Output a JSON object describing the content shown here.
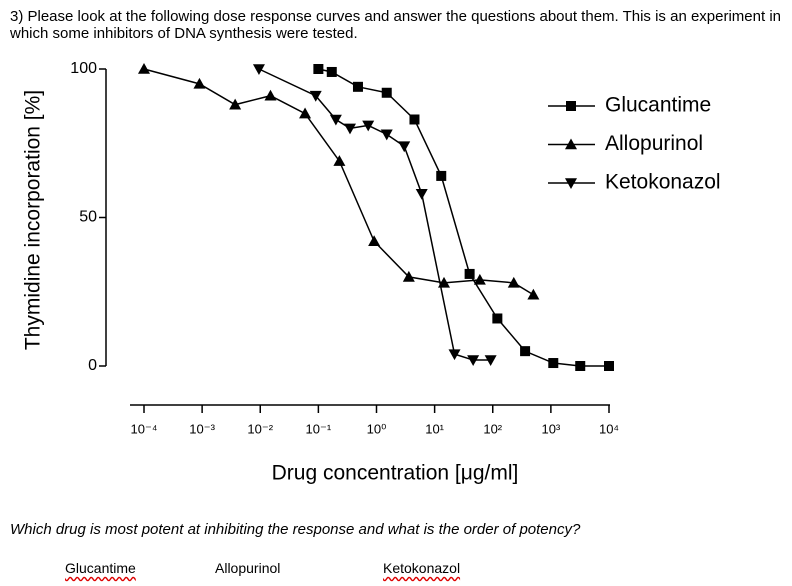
{
  "question": "3) Please look at the following dose response curves and answer the questions about them.  This is an experiment in which some inhibitors of DNA synthesis were tested.",
  "chart_data": {
    "type": "line",
    "xscale": "log",
    "xlabel": "Drug concentration [μg/ml]",
    "ylabel": "Thymidine incorporation [%]",
    "xlim": [
      0.0001,
      10000
    ],
    "ylim": [
      0,
      100
    ],
    "xticks": [
      {
        "value": 0.0001,
        "label": "10⁻⁴"
      },
      {
        "value": 0.001,
        "label": "10⁻³"
      },
      {
        "value": 0.01,
        "label": "10⁻²"
      },
      {
        "value": 0.1,
        "label": "10⁻¹"
      },
      {
        "value": 1,
        "label": "10⁰"
      },
      {
        "value": 10,
        "label": "10¹"
      },
      {
        "value": 100,
        "label": "10²"
      },
      {
        "value": 1000,
        "label": "10³"
      },
      {
        "value": 10000,
        "label": "10⁴"
      }
    ],
    "yticks": [
      0,
      50,
      100
    ],
    "legend": "upper right",
    "series": [
      {
        "name": "Glucantime",
        "color": "#000000",
        "marker": "square",
        "x": [
          0.1,
          0.17,
          0.48,
          1.5,
          4.5,
          13,
          40,
          120,
          360,
          1100,
          3200,
          10000
        ],
        "values": [
          100,
          99,
          94,
          92,
          83,
          64,
          31,
          16,
          5,
          1,
          0,
          0
        ]
      },
      {
        "name": "Allopurinol",
        "color": "#000000",
        "marker": "triangle-up",
        "x": [
          0.0001,
          0.0009,
          0.0037,
          0.015,
          0.059,
          0.23,
          0.91,
          3.6,
          14.5,
          60,
          230,
          500
        ],
        "values": [
          100,
          95,
          88,
          91,
          85,
          69,
          42,
          30,
          28,
          29,
          28,
          24
        ]
      },
      {
        "name": "Ketokonazol",
        "color": "#000000",
        "marker": "triangle-down",
        "x": [
          0.0095,
          0.09,
          0.2,
          0.35,
          0.72,
          1.5,
          3,
          6,
          22,
          46,
          92
        ],
        "values": [
          100,
          91,
          83,
          80,
          81,
          78,
          74,
          58,
          4,
          2,
          2
        ]
      }
    ]
  },
  "prompt": "Which drug is most potent at inhibiting the response and what is the order of potency?",
  "answers": [
    "Glucantime",
    "Allopurinol",
    "Ketokonazol"
  ]
}
